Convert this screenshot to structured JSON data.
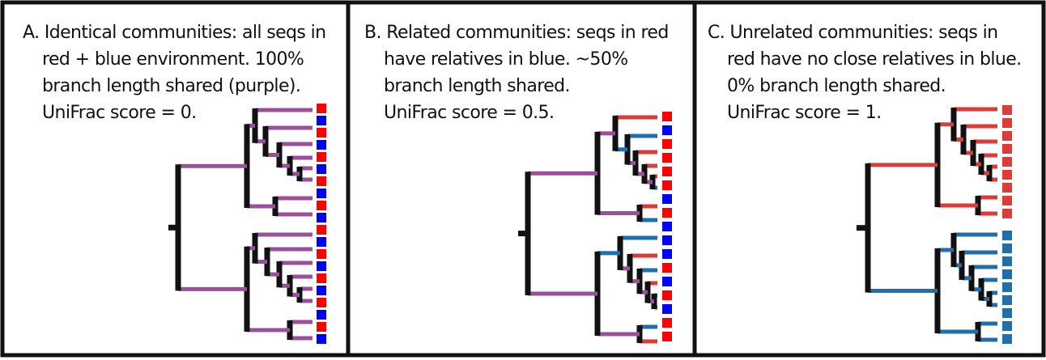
{
  "colors": {
    "red": "#dd3a3a",
    "blue": "#1f6fae",
    "purple": "#9b4f9b",
    "black": "#111111"
  },
  "panels": [
    {
      "id": "A",
      "lines": [
        "A. Identical communities: all seqs in",
        "red + blue environment. 100%",
        "branch length shared (purple).",
        "UniFrac score = 0."
      ],
      "tips": [
        "red",
        "blue",
        "red",
        "blue",
        "red",
        "blue",
        "red",
        "blue",
        "red",
        "blue",
        "red",
        "blue",
        "red",
        "blue",
        "red",
        "blue",
        "red",
        "blue",
        "red",
        "blue",
        "red",
        "blue",
        "red",
        "blue",
        "red",
        "blue",
        "red",
        "blue",
        "red",
        "blue"
      ],
      "branch_colors": "all-purple"
    },
    {
      "id": "B",
      "lines": [
        "B. Related communities: seqs in red",
        "have relatives in blue.  ~50%",
        "branch length shared.",
        "UniFrac score = 0.5."
      ],
      "tips": [
        "red",
        "blue",
        "red",
        "red",
        "red",
        "red",
        "blue",
        "red",
        "blue",
        "blue",
        "blue",
        "red",
        "blue",
        "red",
        "blue",
        "red",
        "red",
        "blue",
        "red"
      ],
      "branch_colors": "mixed"
    },
    {
      "id": "C",
      "lines": [
        "C. Unrelated communities: seqs in",
        "red have no close relatives in blue.",
        "0% branch length shared.",
        "UniFrac score = 1."
      ],
      "tips": [
        "red",
        "red",
        "red",
        "red",
        "red",
        "red",
        "red",
        "red",
        "red",
        "blue",
        "blue",
        "blue",
        "blue",
        "blue",
        "blue",
        "blue",
        "blue",
        "blue",
        "blue"
      ],
      "branch_colors": "separated"
    }
  ]
}
